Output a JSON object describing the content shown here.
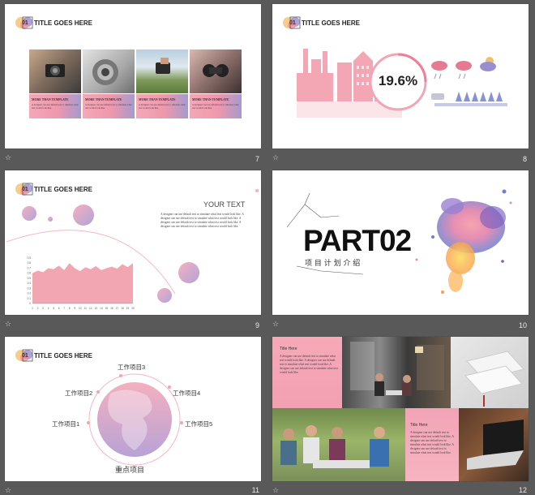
{
  "colors": {
    "background": "#595959",
    "slide": "#ffffff",
    "pink": "#f0a0b4",
    "purple": "#a89ad2",
    "dark_text": "#222222"
  },
  "slides": [
    {
      "number": "7",
      "logo_number": "01",
      "title": "TITLE GOES HERE",
      "cards": [
        {
          "heading": "MORE THAN TEMPLATE",
          "body": "A designer can use default text to simulate what text would look like.",
          "photo": "camera-photo"
        },
        {
          "heading": "MORE THAN TEMPLATE",
          "body": "A designer can use default text to simulate what text would look like.",
          "photo": "lens-photo"
        },
        {
          "heading": "MORE THAN TEMPLATE",
          "body": "A designer can use default text to simulate what text would look like.",
          "photo": "field-photo"
        },
        {
          "heading": "MORE THAN TEMPLATE",
          "body": "A designer can use default text to simulate what text would look like.",
          "photo": "binoculars-photo"
        }
      ]
    },
    {
      "number": "8",
      "logo_number": "01",
      "title": "TITLE GOES HERE",
      "percent": "19.6%"
    },
    {
      "number": "9",
      "logo_number": "01",
      "title": "TITLE GOES HERE",
      "heading": "YOUR TEXT",
      "body": "A designer can use default text to simulate what text would look like. A designer can use default text to simulate what text would look like. A designer can use default text to simulate what text would look like. A designer can use default text to simulate what text would look like."
    },
    {
      "number": "10",
      "part_title": "PART02",
      "part_subtitle": "项 目 计 划 介 绍"
    },
    {
      "number": "11",
      "logo_number": "01",
      "title": "TITLE GOES HERE",
      "center_label": "重点项目",
      "items": [
        "工作项目1",
        "工作项目2",
        "工作项目3",
        "工作项目4",
        "工作项目5"
      ]
    },
    {
      "number": "12",
      "blocks": [
        {
          "heading": "Title Here",
          "body": "A designer can use default text to simulate what text would look like. A designer can use default text to simulate what text would look like. A designer can use default text to simulate what text would look like."
        },
        {
          "heading": "Title Here",
          "body": "A designer can use default text to simulate what text would look like. A designer can use default text to simulate what text would look like. A designer can use default text to simulate what text would look like."
        }
      ]
    }
  ],
  "chart_data": {
    "type": "area",
    "title": "",
    "x": [
      "1",
      "2",
      "3",
      "4",
      "5",
      "6",
      "7",
      "8",
      "9",
      "10",
      "11",
      "12",
      "13",
      "14",
      "15",
      "16",
      "17",
      "18",
      "19",
      "20"
    ],
    "y_ticks": [
      "0",
      "0.1",
      "0.2",
      "0.3",
      "0.4",
      "0.5",
      "0.6",
      "0.7",
      "0.8",
      "0.9"
    ],
    "values": [
      0.6,
      0.65,
      0.62,
      0.7,
      0.68,
      0.75,
      0.66,
      0.8,
      0.7,
      0.64,
      0.72,
      0.68,
      0.74,
      0.66,
      0.7,
      0.73,
      0.69,
      0.78,
      0.72,
      0.8
    ],
    "ylim": [
      0,
      0.9
    ],
    "color": "#f2a6b2"
  }
}
